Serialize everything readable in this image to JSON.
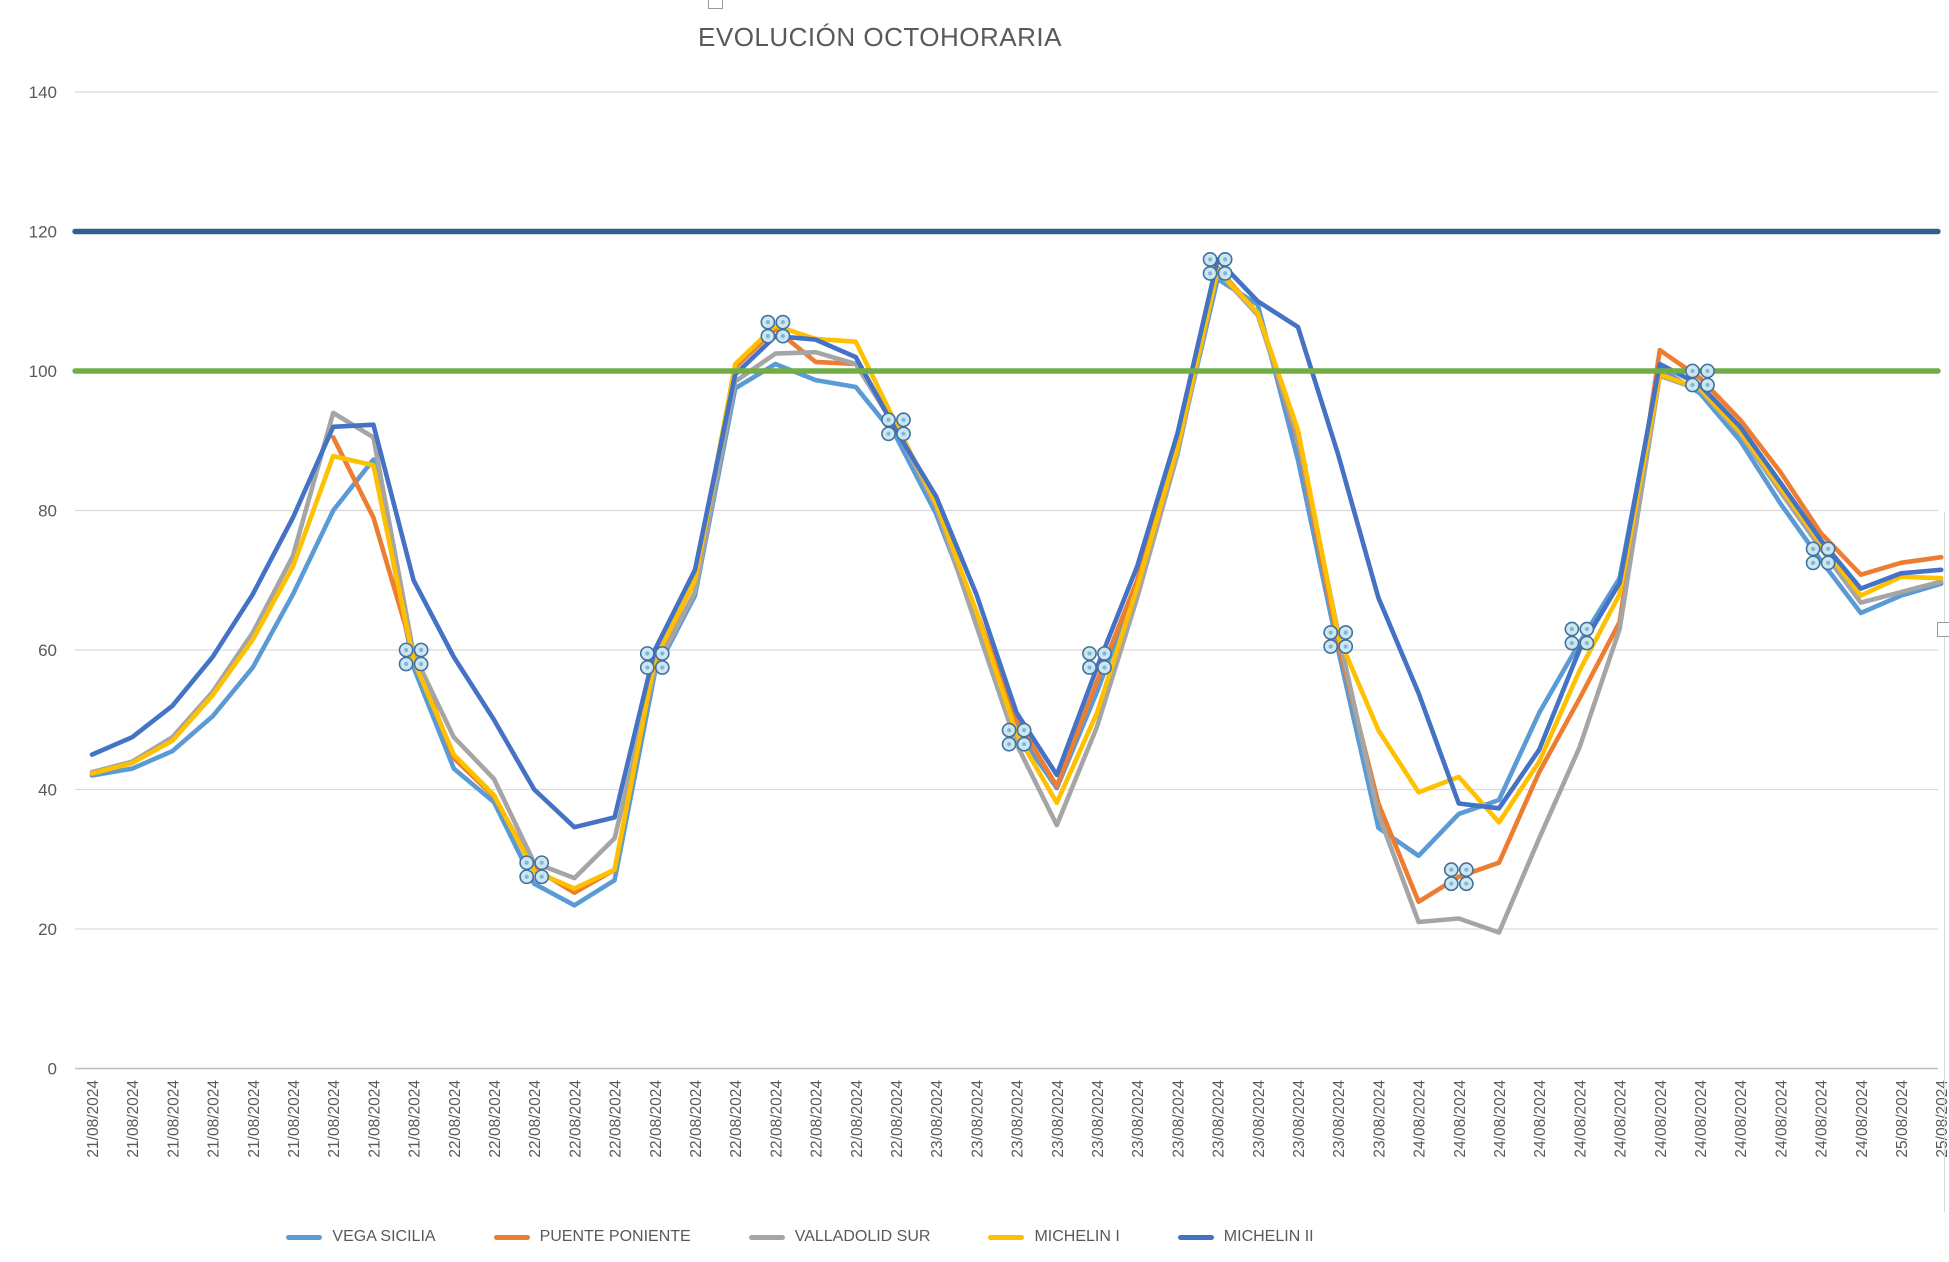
{
  "chart_data": {
    "type": "line",
    "title": "EVOLUCIÓN OCTOHORARIA",
    "y_axis": {
      "min": 0,
      "max": 140,
      "step": 20,
      "ticks": [
        "0",
        "20",
        "40",
        "60",
        "80",
        "100",
        "120",
        "140"
      ]
    },
    "x_labels": [
      "21/08/2024",
      "21/08/2024",
      "21/08/2024",
      "21/08/2024",
      "21/08/2024",
      "21/08/2024",
      "21/08/2024",
      "21/08/2024",
      "21/08/2024",
      "22/08/2024",
      "22/08/2024",
      "22/08/2024",
      "22/08/2024",
      "22/08/2024",
      "22/08/2024",
      "22/08/2024",
      "22/08/2024",
      "22/08/2024",
      "22/08/2024",
      "22/08/2024",
      "22/08/2024",
      "23/08/2024",
      "23/08/2024",
      "23/08/2024",
      "23/08/2024",
      "23/08/2024",
      "23/08/2024",
      "23/08/2024",
      "23/08/2024",
      "23/08/2024",
      "23/08/2024",
      "23/08/2024",
      "23/08/2024",
      "24/08/2024",
      "24/08/2024",
      "24/08/2024",
      "24/08/2024",
      "24/08/2024",
      "24/08/2024",
      "24/08/2024",
      "24/08/2024",
      "24/08/2024",
      "24/08/2024",
      "24/08/2024",
      "24/08/2024",
      "25/08/2024",
      "25/08/2024"
    ],
    "series": [
      {
        "name": "VEGA SICILIA",
        "color": "#5B9BD5",
        "values": [
          42,
          43,
          45.5,
          50.5,
          57.5,
          68,
          80,
          87.3,
          57.5,
          43,
          38.2,
          26.5,
          23.4,
          27,
          56.7,
          67.8,
          97.5,
          101,
          98.7,
          97.7,
          90.6,
          79.5,
          64.5,
          48.5,
          40.2,
          54,
          69.5,
          88.5,
          113.2,
          109.5,
          87.2,
          60,
          34.5,
          30.5,
          36.5,
          38.5,
          51,
          61,
          70.3,
          100.4,
          96.8,
          90,
          81,
          72.9,
          65.3,
          67.8,
          69.5
        ]
      },
      {
        "name": "PUENTE PONIENTE",
        "color": "#ED7D31",
        "values": [
          null,
          null,
          null,
          null,
          null,
          null,
          90.5,
          79,
          59.5,
          44.5,
          39,
          28.7,
          25.2,
          28.5,
          58.3,
          70,
          100.5,
          106,
          101.3,
          101,
          92.5,
          80.5,
          65.5,
          50,
          40.5,
          55.5,
          70,
          89.5,
          114.8,
          108.2,
          90,
          61,
          38,
          23.9,
          27.5,
          29.5,
          42.5,
          53,
          64,
          103,
          99,
          93,
          85.5,
          76.8,
          70.8,
          72.5,
          73.3
        ]
      },
      {
        "name": "VALLADOLID SUR",
        "color": "#A5A5A5",
        "values": [
          42.5,
          44,
          47.5,
          54,
          62.5,
          73.5,
          94,
          90.5,
          59.5,
          47.5,
          41.5,
          29.5,
          27.3,
          33,
          57.2,
          68.3,
          98.5,
          102.5,
          102.7,
          101,
          91.8,
          80.5,
          63.5,
          46.5,
          34.9,
          49,
          67.5,
          88,
          114.3,
          108,
          90.5,
          62.5,
          36.5,
          21,
          21.5,
          19.5,
          33,
          46,
          63,
          99.3,
          97.3,
          91,
          82.7,
          74.6,
          66.8,
          68.3,
          69.8
        ]
      },
      {
        "name": "MICHELIN I",
        "color": "#FFC000",
        "values": [
          42.3,
          43.8,
          47,
          53.5,
          61.5,
          72,
          87.8,
          86.5,
          58.5,
          45,
          39.2,
          28.3,
          25.8,
          28.5,
          58.6,
          70,
          101,
          106.5,
          104.6,
          104.2,
          92.4,
          81,
          65.5,
          48,
          38.1,
          51,
          69,
          89,
          114.5,
          108.3,
          91.5,
          62,
          48.5,
          39.6,
          41.8,
          35.3,
          44,
          57,
          68,
          99.5,
          97.5,
          91.3,
          83.3,
          75.3,
          67.8,
          70.5,
          70.3
        ]
      },
      {
        "name": "MICHELIN II",
        "color": "#4472C4",
        "values": [
          45,
          47.5,
          52,
          59,
          68,
          79,
          92,
          92.3,
          70,
          59,
          50,
          40,
          34.6,
          36,
          60,
          71.5,
          99.5,
          105,
          104.5,
          102,
          91.5,
          82,
          68,
          51,
          42.1,
          57.5,
          72,
          91,
          116,
          110,
          106.3,
          88,
          67.5,
          53.8,
          38,
          37.3,
          45.7,
          60,
          69.6,
          101,
          98,
          92,
          84,
          75.8,
          68.8,
          71,
          71.5
        ]
      }
    ],
    "ref_lines": [
      {
        "value": 120,
        "color": "#2E5F8F"
      },
      {
        "value": 100,
        "color": "#70AD47"
      }
    ],
    "selection_markers": [
      {
        "i": 8,
        "v": 59
      },
      {
        "i": 11,
        "v": 28.5
      },
      {
        "i": 14,
        "v": 58.5
      },
      {
        "i": 17,
        "v": 106
      },
      {
        "i": 20,
        "v": 92
      },
      {
        "i": 23,
        "v": 47.5
      },
      {
        "i": 25,
        "v": 58.5
      },
      {
        "i": 28,
        "v": 115
      },
      {
        "i": 31,
        "v": 61.5
      },
      {
        "i": 34,
        "v": 27.5
      },
      {
        "i": 37,
        "v": 62
      },
      {
        "i": 40,
        "v": 99
      },
      {
        "i": 43,
        "v": 73.5
      }
    ],
    "grid": true,
    "legend_position": "bottom"
  },
  "colors": {
    "grid": "#D9D9D9",
    "axis": "#BFBFBF",
    "text": "#595959",
    "marker_fill": "#CDE6F2",
    "marker_stroke": "#41719C",
    "marker_dot": "#7FB8D4"
  }
}
